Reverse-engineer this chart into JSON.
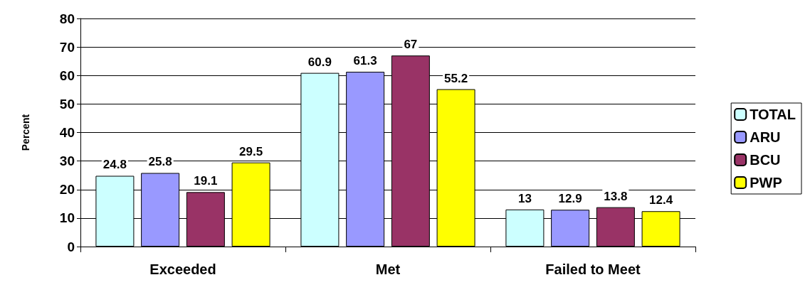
{
  "chart_data": {
    "type": "bar",
    "ylabel": "Percent",
    "categories": [
      "Exceeded",
      "Met",
      "Failed to Meet"
    ],
    "series": [
      {
        "name": "TOTAL",
        "color": "#ccffff",
        "values": [
          24.8,
          60.9,
          13
        ]
      },
      {
        "name": "ARU",
        "color": "#9999ff",
        "values": [
          25.8,
          61.3,
          12.9
        ]
      },
      {
        "name": "BCU",
        "color": "#993366",
        "values": [
          19.1,
          67,
          13.8
        ]
      },
      {
        "name": "PWP",
        "color": "#ffff00",
        "values": [
          29.5,
          55.2,
          12.4
        ]
      }
    ],
    "ylim": [
      0,
      80
    ],
    "yticks": [
      0,
      10,
      20,
      30,
      40,
      50,
      60,
      70,
      80
    ],
    "grid": "y",
    "legend": "right",
    "data_labels": true
  }
}
